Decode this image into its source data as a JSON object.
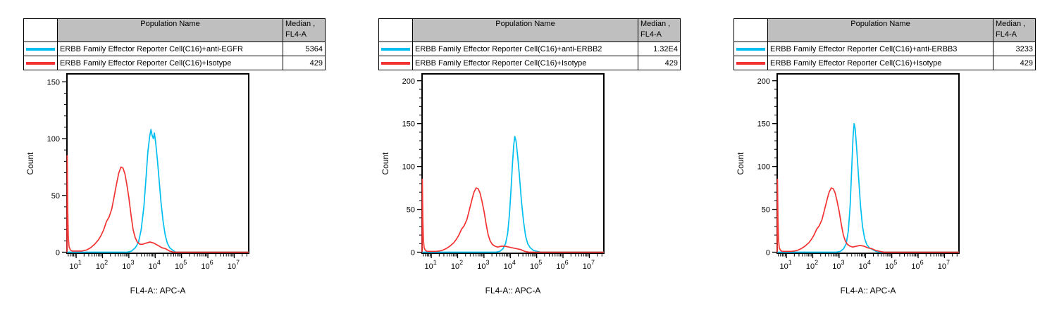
{
  "colors": {
    "cyan_series": "#00BFF0",
    "red_series": "#F23333",
    "table_header_bg": "#BFBFBF",
    "axis": "#000000",
    "background": "#FFFFFF"
  },
  "table_header": {
    "population": "Population Name",
    "median_line1": "Median ,",
    "median_line2": "FL4-A"
  },
  "axis_labels": {
    "x": "FL4-A:: APC-A",
    "y": "Count"
  },
  "panels": [
    {
      "table": {
        "rows": [
          {
            "color_hex": "#00BFF0",
            "name": "ERBB Family Effector Reporter Cell(C16)+anti-EGFR",
            "median": "5364"
          },
          {
            "color_hex": "#F23333",
            "name": "ERBB Family Effector Reporter Cell(C16)+Isotype",
            "median": "429"
          }
        ]
      },
      "chart_data": {
        "type": "line",
        "title": "",
        "xlabel": "FL4-A:: APC-A",
        "ylabel": "Count",
        "x_scale": "log10",
        "xlim_log10": [
          0.65,
          7.55
        ],
        "x_ticks": [
          "10^1",
          "10^2",
          "10^3",
          "10^4",
          "10^5",
          "10^6",
          "10^7"
        ],
        "ylim": [
          0,
          157
        ],
        "y_ticks": [
          0,
          50,
          100,
          150
        ],
        "grid": false,
        "legend_position": "table-above",
        "series": [
          {
            "name": "ERBB Family Effector Reporter Cell(C16)+anti-EGFR",
            "color": "#00BFF0",
            "median_fl4a": 5364,
            "peak_count": 108,
            "points_log10x_count": [
              [
                0.65,
                0
              ],
              [
                2.95,
                0
              ],
              [
                3.1,
                1
              ],
              [
                3.25,
                4
              ],
              [
                3.37,
                9
              ],
              [
                3.47,
                20
              ],
              [
                3.57,
                40
              ],
              [
                3.65,
                65
              ],
              [
                3.72,
                88
              ],
              [
                3.79,
                102
              ],
              [
                3.84,
                108
              ],
              [
                3.88,
                103
              ],
              [
                3.93,
                100
              ],
              [
                3.97,
                105
              ],
              [
                4.02,
                96
              ],
              [
                4.08,
                82
              ],
              [
                4.15,
                63
              ],
              [
                4.22,
                44
              ],
              [
                4.3,
                27
              ],
              [
                4.38,
                15
              ],
              [
                4.46,
                8
              ],
              [
                4.55,
                4
              ],
              [
                4.65,
                2
              ],
              [
                4.78,
                0
              ],
              [
                7.55,
                0
              ]
            ]
          },
          {
            "name": "ERBB Family Effector Reporter Cell(C16)+Isotype",
            "color": "#F23333",
            "median_fl4a": 429,
            "peak_count": 75,
            "points_log10x_count": [
              [
                0.65,
                0
              ],
              [
                0.66,
                85
              ],
              [
                0.68,
                38
              ],
              [
                0.7,
                14
              ],
              [
                0.73,
                5
              ],
              [
                0.78,
                2
              ],
              [
                0.85,
                1
              ],
              [
                1.0,
                1
              ],
              [
                1.2,
                1
              ],
              [
                1.4,
                2
              ],
              [
                1.55,
                4
              ],
              [
                1.7,
                7
              ],
              [
                1.85,
                11
              ],
              [
                1.95,
                15
              ],
              [
                2.05,
                20
              ],
              [
                2.15,
                27
              ],
              [
                2.25,
                31
              ],
              [
                2.35,
                38
              ],
              [
                2.45,
                50
              ],
              [
                2.55,
                62
              ],
              [
                2.62,
                70
              ],
              [
                2.7,
                75
              ],
              [
                2.78,
                74
              ],
              [
                2.85,
                69
              ],
              [
                2.92,
                60
              ],
              [
                3.0,
                48
              ],
              [
                3.08,
                33
              ],
              [
                3.16,
                20
              ],
              [
                3.24,
                13
              ],
              [
                3.32,
                9
              ],
              [
                3.42,
                7
              ],
              [
                3.52,
                7
              ],
              [
                3.65,
                8
              ],
              [
                3.8,
                9
              ],
              [
                3.95,
                8
              ],
              [
                4.1,
                6
              ],
              [
                4.25,
                4
              ],
              [
                4.4,
                3
              ],
              [
                4.55,
                1
              ],
              [
                4.7,
                0
              ],
              [
                7.55,
                0
              ]
            ]
          }
        ]
      }
    },
    {
      "table": {
        "rows": [
          {
            "color_hex": "#00BFF0",
            "name": "ERBB Family Effector Reporter Cell(C16)+anti-ERBB2",
            "median": "1.32E4"
          },
          {
            "color_hex": "#F23333",
            "name": "ERBB Family Effector Reporter Cell(C16)+Isotype",
            "median": "429"
          }
        ]
      },
      "chart_data": {
        "type": "line",
        "title": "",
        "xlabel": "FL4-A:: APC-A",
        "ylabel": "Count",
        "x_scale": "log10",
        "xlim_log10": [
          0.65,
          7.55
        ],
        "x_ticks": [
          "10^1",
          "10^2",
          "10^3",
          "10^4",
          "10^5",
          "10^6",
          "10^7"
        ],
        "ylim": [
          0,
          208
        ],
        "y_ticks": [
          0,
          50,
          100,
          150,
          200
        ],
        "grid": false,
        "legend_position": "table-above",
        "series": [
          {
            "name": "ERBB Family Effector Reporter Cell(C16)+anti-ERBB2",
            "color": "#00BFF0",
            "median_fl4a": 13200,
            "peak_count": 135,
            "points_log10x_count": [
              [
                0.65,
                0
              ],
              [
                3.45,
                0
              ],
              [
                3.6,
                1
              ],
              [
                3.72,
                4
              ],
              [
                3.82,
                10
              ],
              [
                3.9,
                22
              ],
              [
                3.97,
                45
              ],
              [
                4.03,
                75
              ],
              [
                4.08,
                103
              ],
              [
                4.13,
                125
              ],
              [
                4.17,
                135
              ],
              [
                4.22,
                129
              ],
              [
                4.28,
                112
              ],
              [
                4.35,
                88
              ],
              [
                4.42,
                60
              ],
              [
                4.5,
                36
              ],
              [
                4.58,
                19
              ],
              [
                4.66,
                10
              ],
              [
                4.76,
                5
              ],
              [
                4.88,
                2
              ],
              [
                5.02,
                1
              ],
              [
                5.15,
                0
              ],
              [
                7.55,
                0
              ]
            ]
          },
          {
            "name": "ERBB Family Effector Reporter Cell(C16)+Isotype",
            "color": "#F23333",
            "median_fl4a": 429,
            "peak_count": 75,
            "points_log10x_count": [
              [
                0.65,
                0
              ],
              [
                0.66,
                85
              ],
              [
                0.68,
                38
              ],
              [
                0.7,
                14
              ],
              [
                0.73,
                5
              ],
              [
                0.78,
                2
              ],
              [
                0.85,
                1
              ],
              [
                1.0,
                1
              ],
              [
                1.2,
                1
              ],
              [
                1.4,
                2
              ],
              [
                1.55,
                4
              ],
              [
                1.7,
                7
              ],
              [
                1.85,
                11
              ],
              [
                1.95,
                15
              ],
              [
                2.05,
                20
              ],
              [
                2.15,
                27
              ],
              [
                2.25,
                31
              ],
              [
                2.35,
                38
              ],
              [
                2.45,
                50
              ],
              [
                2.55,
                62
              ],
              [
                2.62,
                70
              ],
              [
                2.7,
                75
              ],
              [
                2.78,
                74
              ],
              [
                2.85,
                69
              ],
              [
                2.92,
                60
              ],
              [
                3.0,
                48
              ],
              [
                3.08,
                33
              ],
              [
                3.16,
                20
              ],
              [
                3.24,
                13
              ],
              [
                3.32,
                9
              ],
              [
                3.42,
                7
              ],
              [
                3.52,
                6
              ],
              [
                3.65,
                7
              ],
              [
                3.8,
                7
              ],
              [
                3.95,
                6
              ],
              [
                4.1,
                5
              ],
              [
                4.25,
                4
              ],
              [
                4.4,
                3
              ],
              [
                4.55,
                1
              ],
              [
                4.7,
                0
              ],
              [
                7.55,
                0
              ]
            ]
          }
        ]
      }
    },
    {
      "table": {
        "rows": [
          {
            "color_hex": "#00BFF0",
            "name": "ERBB Family Effector Reporter Cell(C16)+anti-ERBB3",
            "median": "3233"
          },
          {
            "color_hex": "#F23333",
            "name": "ERBB Family Effector Reporter Cell(C16)+Isotype",
            "median": "429"
          }
        ]
      },
      "chart_data": {
        "type": "line",
        "title": "",
        "xlabel": "FL4-A:: APC-A",
        "ylabel": "Count",
        "x_scale": "log10",
        "xlim_log10": [
          0.65,
          7.55
        ],
        "x_ticks": [
          "10^1",
          "10^2",
          "10^3",
          "10^4",
          "10^5",
          "10^6",
          "10^7"
        ],
        "ylim": [
          0,
          208
        ],
        "y_ticks": [
          0,
          50,
          100,
          150,
          200
        ],
        "grid": false,
        "legend_position": "table-above",
        "series": [
          {
            "name": "ERBB Family Effector Reporter Cell(C16)+anti-ERBB3",
            "color": "#00BFF0",
            "median_fl4a": 3233,
            "peak_count": 150,
            "points_log10x_count": [
              [
                0.65,
                0
              ],
              [
                2.9,
                0
              ],
              [
                3.05,
                1
              ],
              [
                3.17,
                4
              ],
              [
                3.27,
                10
              ],
              [
                3.35,
                25
              ],
              [
                3.42,
                55
              ],
              [
                3.48,
                98
              ],
              [
                3.53,
                135
              ],
              [
                3.57,
                150
              ],
              [
                3.61,
                144
              ],
              [
                3.67,
                120
              ],
              [
                3.74,
                88
              ],
              [
                3.81,
                55
              ],
              [
                3.89,
                30
              ],
              [
                3.97,
                16
              ],
              [
                4.05,
                9
              ],
              [
                4.15,
                5
              ],
              [
                4.27,
                3
              ],
              [
                4.4,
                1
              ],
              [
                4.55,
                0
              ],
              [
                7.55,
                0
              ]
            ]
          },
          {
            "name": "ERBB Family Effector Reporter Cell(C16)+Isotype",
            "color": "#F23333",
            "median_fl4a": 429,
            "peak_count": 75,
            "points_log10x_count": [
              [
                0.65,
                0
              ],
              [
                0.66,
                85
              ],
              [
                0.68,
                38
              ],
              [
                0.7,
                14
              ],
              [
                0.73,
                5
              ],
              [
                0.78,
                2
              ],
              [
                0.85,
                1
              ],
              [
                1.0,
                1
              ],
              [
                1.2,
                1
              ],
              [
                1.4,
                2
              ],
              [
                1.55,
                4
              ],
              [
                1.7,
                7
              ],
              [
                1.85,
                11
              ],
              [
                1.95,
                15
              ],
              [
                2.05,
                20
              ],
              [
                2.15,
                27
              ],
              [
                2.25,
                31
              ],
              [
                2.35,
                38
              ],
              [
                2.45,
                50
              ],
              [
                2.55,
                62
              ],
              [
                2.62,
                70
              ],
              [
                2.7,
                75
              ],
              [
                2.78,
                74
              ],
              [
                2.85,
                69
              ],
              [
                2.92,
                60
              ],
              [
                3.0,
                48
              ],
              [
                3.08,
                33
              ],
              [
                3.16,
                20
              ],
              [
                3.24,
                13
              ],
              [
                3.32,
                9
              ],
              [
                3.42,
                7
              ],
              [
                3.52,
                6
              ],
              [
                3.65,
                7
              ],
              [
                3.8,
                8
              ],
              [
                3.95,
                7
              ],
              [
                4.1,
                5
              ],
              [
                4.25,
                4
              ],
              [
                4.4,
                2
              ],
              [
                4.55,
                1
              ],
              [
                4.7,
                0
              ],
              [
                7.55,
                0
              ]
            ]
          }
        ]
      }
    }
  ]
}
